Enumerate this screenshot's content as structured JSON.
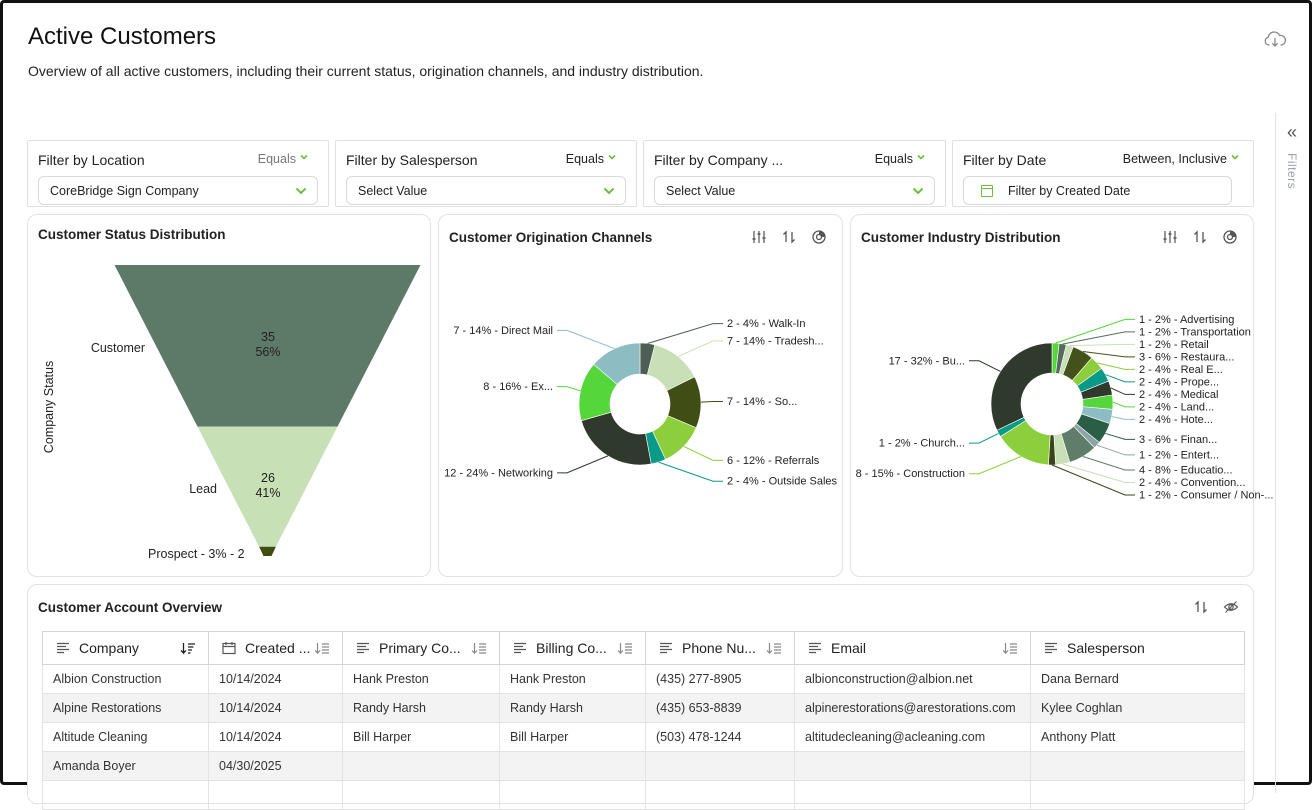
{
  "header": {
    "title": "Active Customers",
    "subtitle": "Overview of all active customers, including their current status, origination channels, and industry distribution."
  },
  "icons": {
    "download": "cloud-download-icon",
    "collapse": "double-chevron-left-icon"
  },
  "sidebar": {
    "label": "Filters"
  },
  "filters": [
    {
      "label": "Filter by Location",
      "operator": "Equals",
      "value": "CoreBridge Sign Company"
    },
    {
      "label": "Filter by Salesperson",
      "operator": "Equals",
      "value": "Select Value"
    },
    {
      "label": "Filter by Company ...",
      "operator": "Equals",
      "value": "Select Value"
    },
    {
      "label": "Filter by Date",
      "operator": "Between, Inclusive",
      "value": "Filter by Created Date"
    }
  ],
  "colors": {
    "accent": "#6bbf3a",
    "funnel_customer": "#5c7a67",
    "funnel_lead": "#c7e0b5",
    "funnel_prospect": "#3f4d12"
  },
  "status_chart": {
    "title": "Customer Status Distribution",
    "ylabel": "Company Status",
    "labels": {
      "customer": "Customer",
      "lead": "Lead",
      "prospect": "Prospect - 3% - 2"
    }
  },
  "origination_chart": {
    "title": "Customer Origination Channels"
  },
  "industry_chart": {
    "title": "Customer Industry Distribution"
  },
  "chart_data": [
    {
      "type": "funnel",
      "title": "Customer Status Distribution",
      "ylabel": "Company Status",
      "categories": [
        "Customer",
        "Lead",
        "Prospect"
      ],
      "values": [
        35,
        26,
        2
      ],
      "percents": [
        56,
        41,
        3
      ],
      "data_labels": [
        [
          "35",
          "56%"
        ],
        [
          "26",
          "41%"
        ]
      ]
    },
    {
      "type": "donut",
      "title": "Customer Origination Channels",
      "slices": [
        {
          "label": "2 - 4% - Walk-In",
          "value": 2,
          "color": "#4d5e55"
        },
        {
          "label": "7 - 14% - Tradesh...",
          "value": 7,
          "color": "#c9dfb8"
        },
        {
          "label": "7 - 14% - So...",
          "value": 7,
          "color": "#404d15"
        },
        {
          "label": "6 - 12% - Referrals",
          "value": 6,
          "color": "#8dce3c"
        },
        {
          "label": "2 - 4% - Outside Sales",
          "value": 2,
          "color": "#0a9a88"
        },
        {
          "label": "12 - 24% - Networking",
          "value": 12,
          "color": "#2f3a2c"
        },
        {
          "label": "8 - 16% - Ex...",
          "value": 8,
          "color": "#55d63a"
        },
        {
          "label": "7 - 14% - Direct Mail",
          "value": 7,
          "color": "#8dbcc2"
        }
      ]
    },
    {
      "type": "donut",
      "title": "Customer Industry Distribution",
      "slices": [
        {
          "label": "1 - 2% - Advertising",
          "value": 1,
          "color": "#55d63a"
        },
        {
          "label": "1 - 2% - Transportation",
          "value": 1,
          "color": "#596a5f"
        },
        {
          "label": "1 - 2% - Retail",
          "value": 1,
          "color": "#c8dfb8"
        },
        {
          "label": "3 - 6% - Restaura...",
          "value": 3,
          "color": "#43511a"
        },
        {
          "label": "2 - 4% - Real E...",
          "value": 2,
          "color": "#8dce3c"
        },
        {
          "label": "2 - 4% - Prope...",
          "value": 2,
          "color": "#0a9a88"
        },
        {
          "label": "2 - 4% - Medical",
          "value": 2,
          "color": "#2f3a2c"
        },
        {
          "label": "2 - 4% - Land...",
          "value": 2,
          "color": "#55d63a"
        },
        {
          "label": "2 - 4% - Hote...",
          "value": 2,
          "color": "#8dbcc2"
        },
        {
          "label": "3 - 6% - Finan...",
          "value": 3,
          "color": "#2a5e45"
        },
        {
          "label": "1 - 2% - Entert...",
          "value": 1,
          "color": "#8da3a5"
        },
        {
          "label": "4 - 8% - Educatio...",
          "value": 4,
          "color": "#5f7d68"
        },
        {
          "label": "2 - 4% - Convention...",
          "value": 2,
          "color": "#c8dfb8"
        },
        {
          "label": "1 - 2% - Consumer / Non-...",
          "value": 1,
          "color": "#3a4416"
        },
        {
          "label": "8 - 15% - Construction",
          "value": 8,
          "color": "#8dce3c"
        },
        {
          "label": "1 - 2% - Church...",
          "value": 1,
          "color": "#0a9a88"
        },
        {
          "label": "17 - 32% - Bu...",
          "value": 17,
          "color": "#2f3a2c"
        }
      ]
    }
  ],
  "table": {
    "title": "Customer Account Overview",
    "columns": [
      "Company",
      "Created ...",
      "Primary Co...",
      "Billing Co...",
      "Phone Nu...",
      "Email",
      "Salesperson"
    ],
    "rows": [
      [
        "Albion Construction",
        "10/14/2024",
        "Hank Preston",
        "Hank Preston",
        "(435) 277-8905",
        "albionconstruction@albion.net",
        "Dana Bernard"
      ],
      [
        "Alpine Restorations",
        "10/14/2024",
        "Randy Harsh",
        "Randy Harsh",
        "(435) 653-8839",
        "alpinerestorations@arestorations.com",
        "Kylee Coghlan"
      ],
      [
        "Altitude Cleaning",
        "10/14/2024",
        "Bill Harper",
        "Bill Harper",
        "(503) 478-1244",
        "altitudecleaning@acleaning.com",
        "Anthony Platt"
      ],
      [
        "Amanda Boyer",
        "04/30/2025",
        "",
        "",
        "",
        "",
        ""
      ],
      [
        "",
        "",
        "",
        "",
        "",
        "",
        ""
      ]
    ]
  }
}
